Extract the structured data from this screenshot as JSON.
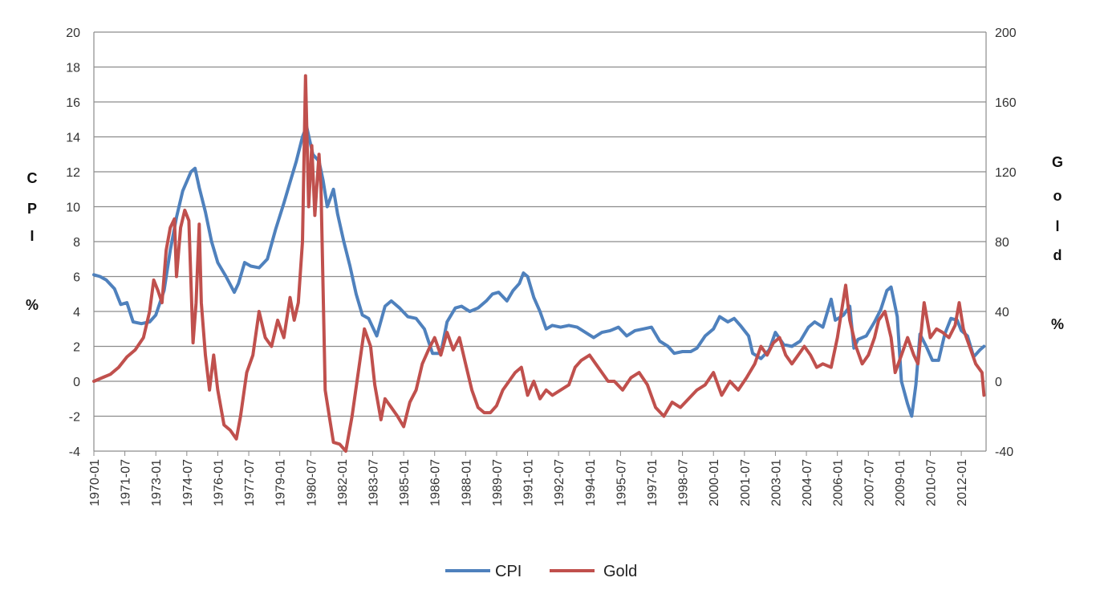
{
  "chart_data": {
    "type": "line",
    "title": "",
    "y_left": {
      "label": "CPI %",
      "label_chars": [
        "C",
        "P",
        "I",
        "",
        "%"
      ],
      "range": [
        -4,
        20
      ],
      "ticks": [
        -4,
        -2,
        0,
        2,
        4,
        6,
        8,
        10,
        12,
        14,
        16,
        18,
        20
      ]
    },
    "y_right": {
      "label": "Gold %",
      "label_chars": [
        "G",
        "o",
        "l",
        "d",
        "",
        "%"
      ],
      "range": [
        -40,
        200
      ],
      "ticks": [
        -40,
        0,
        40,
        80,
        120,
        160,
        200
      ]
    },
    "x_range": [
      1970.0,
      2013.2
    ],
    "x_ticks": [
      "1970-01",
      "1971-07",
      "1973-01",
      "1974-07",
      "1976-01",
      "1977-07",
      "1979-01",
      "1980-07",
      "1982-01",
      "1983-07",
      "1985-01",
      "1986-07",
      "1988-01",
      "1989-07",
      "1991-01",
      "1992-07",
      "1994-01",
      "1995-07",
      "1997-01",
      "1998-07",
      "2000-01",
      "2001-07",
      "2003-01",
      "2004-07",
      "2006-01",
      "2007-07",
      "2009-01",
      "2010-07",
      "2012-01"
    ],
    "grid": true,
    "legend_position": "bottom",
    "series": [
      {
        "name": "CPI",
        "color": "#4f81bd",
        "axis": "left",
        "points": [
          [
            1970.0,
            6.1
          ],
          [
            1970.3,
            6.0
          ],
          [
            1970.6,
            5.8
          ],
          [
            1971.0,
            5.3
          ],
          [
            1971.3,
            4.4
          ],
          [
            1971.6,
            4.5
          ],
          [
            1971.9,
            3.4
          ],
          [
            1972.3,
            3.3
          ],
          [
            1972.7,
            3.4
          ],
          [
            1973.0,
            3.8
          ],
          [
            1973.4,
            5.2
          ],
          [
            1973.7,
            7.5
          ],
          [
            1974.0,
            9.4
          ],
          [
            1974.3,
            10.9
          ],
          [
            1974.7,
            12.0
          ],
          [
            1974.9,
            12.2
          ],
          [
            1975.1,
            11.1
          ],
          [
            1975.4,
            9.7
          ],
          [
            1975.7,
            8.0
          ],
          [
            1976.0,
            6.8
          ],
          [
            1976.4,
            6.0
          ],
          [
            1976.8,
            5.1
          ],
          [
            1977.0,
            5.6
          ],
          [
            1977.3,
            6.8
          ],
          [
            1977.6,
            6.6
          ],
          [
            1978.0,
            6.5
          ],
          [
            1978.4,
            7.0
          ],
          [
            1978.8,
            8.7
          ],
          [
            1979.2,
            10.2
          ],
          [
            1979.5,
            11.4
          ],
          [
            1979.8,
            12.6
          ],
          [
            1980.1,
            14.0
          ],
          [
            1980.3,
            14.6
          ],
          [
            1980.6,
            13.0
          ],
          [
            1980.9,
            12.6
          ],
          [
            1981.1,
            11.5
          ],
          [
            1981.3,
            10.0
          ],
          [
            1981.6,
            11.0
          ],
          [
            1981.8,
            9.6
          ],
          [
            1982.1,
            8.0
          ],
          [
            1982.4,
            6.6
          ],
          [
            1982.7,
            5.0
          ],
          [
            1983.0,
            3.8
          ],
          [
            1983.3,
            3.6
          ],
          [
            1983.7,
            2.6
          ],
          [
            1984.1,
            4.3
          ],
          [
            1984.4,
            4.6
          ],
          [
            1984.8,
            4.2
          ],
          [
            1985.2,
            3.7
          ],
          [
            1985.6,
            3.6
          ],
          [
            1986.0,
            3.0
          ],
          [
            1986.4,
            1.6
          ],
          [
            1986.8,
            1.6
          ],
          [
            1987.1,
            3.4
          ],
          [
            1987.5,
            4.2
          ],
          [
            1987.8,
            4.3
          ],
          [
            1988.2,
            4.0
          ],
          [
            1988.6,
            4.2
          ],
          [
            1989.0,
            4.6
          ],
          [
            1989.3,
            5.0
          ],
          [
            1989.6,
            5.1
          ],
          [
            1990.0,
            4.6
          ],
          [
            1990.3,
            5.2
          ],
          [
            1990.6,
            5.6
          ],
          [
            1990.8,
            6.2
          ],
          [
            1991.0,
            6.0
          ],
          [
            1991.3,
            4.8
          ],
          [
            1991.6,
            4.0
          ],
          [
            1991.9,
            3.0
          ],
          [
            1992.2,
            3.2
          ],
          [
            1992.6,
            3.1
          ],
          [
            1993.0,
            3.2
          ],
          [
            1993.4,
            3.1
          ],
          [
            1993.8,
            2.8
          ],
          [
            1994.2,
            2.5
          ],
          [
            1994.6,
            2.8
          ],
          [
            1995.0,
            2.9
          ],
          [
            1995.4,
            3.1
          ],
          [
            1995.8,
            2.6
          ],
          [
            1996.2,
            2.9
          ],
          [
            1996.6,
            3.0
          ],
          [
            1997.0,
            3.1
          ],
          [
            1997.4,
            2.3
          ],
          [
            1997.8,
            2.0
          ],
          [
            1998.1,
            1.6
          ],
          [
            1998.5,
            1.7
          ],
          [
            1998.9,
            1.7
          ],
          [
            1999.2,
            1.9
          ],
          [
            1999.6,
            2.6
          ],
          [
            2000.0,
            3.0
          ],
          [
            2000.3,
            3.7
          ],
          [
            2000.7,
            3.4
          ],
          [
            2001.0,
            3.6
          ],
          [
            2001.3,
            3.2
          ],
          [
            2001.7,
            2.6
          ],
          [
            2001.9,
            1.6
          ],
          [
            2002.3,
            1.3
          ],
          [
            2002.7,
            1.8
          ],
          [
            2003.0,
            2.8
          ],
          [
            2003.4,
            2.1
          ],
          [
            2003.8,
            2.0
          ],
          [
            2004.2,
            2.3
          ],
          [
            2004.6,
            3.1
          ],
          [
            2004.9,
            3.4
          ],
          [
            2005.3,
            3.1
          ],
          [
            2005.7,
            4.7
          ],
          [
            2005.9,
            3.5
          ],
          [
            2006.3,
            3.8
          ],
          [
            2006.6,
            4.3
          ],
          [
            2006.8,
            1.9
          ],
          [
            2007.0,
            2.4
          ],
          [
            2007.4,
            2.6
          ],
          [
            2007.8,
            3.4
          ],
          [
            2008.1,
            4.1
          ],
          [
            2008.4,
            5.2
          ],
          [
            2008.6,
            5.4
          ],
          [
            2008.9,
            3.7
          ],
          [
            2009.1,
            0.0
          ],
          [
            2009.4,
            -1.3
          ],
          [
            2009.6,
            -2.0
          ],
          [
            2009.8,
            -0.2
          ],
          [
            2010.0,
            2.7
          ],
          [
            2010.3,
            2.0
          ],
          [
            2010.6,
            1.2
          ],
          [
            2010.9,
            1.2
          ],
          [
            2011.2,
            2.7
          ],
          [
            2011.5,
            3.6
          ],
          [
            2011.8,
            3.5
          ],
          [
            2012.0,
            2.9
          ],
          [
            2012.3,
            2.6
          ],
          [
            2012.6,
            1.4
          ],
          [
            2012.9,
            1.8
          ],
          [
            2013.1,
            2.0
          ]
        ]
      },
      {
        "name": "Gold",
        "color": "#c0504d",
        "axis": "right",
        "points": [
          [
            1970.0,
            0
          ],
          [
            1970.4,
            2
          ],
          [
            1970.8,
            4
          ],
          [
            1971.2,
            8
          ],
          [
            1971.6,
            14
          ],
          [
            1972.0,
            18
          ],
          [
            1972.4,
            25
          ],
          [
            1972.7,
            40
          ],
          [
            1972.9,
            58
          ],
          [
            1973.1,
            52
          ],
          [
            1973.3,
            45
          ],
          [
            1973.5,
            75
          ],
          [
            1973.7,
            88
          ],
          [
            1973.9,
            93
          ],
          [
            1974.0,
            60
          ],
          [
            1974.2,
            88
          ],
          [
            1974.4,
            98
          ],
          [
            1974.6,
            92
          ],
          [
            1974.8,
            22
          ],
          [
            1974.95,
            45
          ],
          [
            1975.1,
            90
          ],
          [
            1975.2,
            45
          ],
          [
            1975.4,
            15
          ],
          [
            1975.6,
            -5
          ],
          [
            1975.8,
            15
          ],
          [
            1976.0,
            -5
          ],
          [
            1976.3,
            -25
          ],
          [
            1976.6,
            -28
          ],
          [
            1976.9,
            -33
          ],
          [
            1977.1,
            -20
          ],
          [
            1977.4,
            5
          ],
          [
            1977.7,
            15
          ],
          [
            1978.0,
            40
          ],
          [
            1978.3,
            25
          ],
          [
            1978.6,
            20
          ],
          [
            1978.9,
            35
          ],
          [
            1979.2,
            25
          ],
          [
            1979.5,
            48
          ],
          [
            1979.7,
            35
          ],
          [
            1979.9,
            45
          ],
          [
            1980.1,
            80
          ],
          [
            1980.25,
            175
          ],
          [
            1980.4,
            100
          ],
          [
            1980.55,
            135
          ],
          [
            1980.7,
            95
          ],
          [
            1980.9,
            130
          ],
          [
            1981.0,
            110
          ],
          [
            1981.2,
            -5
          ],
          [
            1981.4,
            -20
          ],
          [
            1981.6,
            -35
          ],
          [
            1981.9,
            -36
          ],
          [
            1982.2,
            -40
          ],
          [
            1982.5,
            -20
          ],
          [
            1982.8,
            5
          ],
          [
            1983.1,
            30
          ],
          [
            1983.4,
            20
          ],
          [
            1983.6,
            -2
          ],
          [
            1983.9,
            -22
          ],
          [
            1984.1,
            -10
          ],
          [
            1984.4,
            -15
          ],
          [
            1984.7,
            -20
          ],
          [
            1985.0,
            -26
          ],
          [
            1985.3,
            -12
          ],
          [
            1985.6,
            -5
          ],
          [
            1985.9,
            10
          ],
          [
            1986.2,
            18
          ],
          [
            1986.5,
            25
          ],
          [
            1986.8,
            15
          ],
          [
            1987.1,
            28
          ],
          [
            1987.4,
            18
          ],
          [
            1987.7,
            25
          ],
          [
            1988.0,
            10
          ],
          [
            1988.3,
            -5
          ],
          [
            1988.6,
            -15
          ],
          [
            1988.9,
            -18
          ],
          [
            1989.2,
            -18
          ],
          [
            1989.5,
            -14
          ],
          [
            1989.8,
            -5
          ],
          [
            1990.1,
            0
          ],
          [
            1990.4,
            5
          ],
          [
            1990.7,
            8
          ],
          [
            1991.0,
            -8
          ],
          [
            1991.3,
            0
          ],
          [
            1991.6,
            -10
          ],
          [
            1991.9,
            -5
          ],
          [
            1992.2,
            -8
          ],
          [
            1992.6,
            -5
          ],
          [
            1993.0,
            -2
          ],
          [
            1993.3,
            8
          ],
          [
            1993.6,
            12
          ],
          [
            1994.0,
            15
          ],
          [
            1994.3,
            10
          ],
          [
            1994.6,
            5
          ],
          [
            1994.9,
            0
          ],
          [
            1995.2,
            0
          ],
          [
            1995.6,
            -5
          ],
          [
            1996.0,
            2
          ],
          [
            1996.4,
            5
          ],
          [
            1996.8,
            -2
          ],
          [
            1997.2,
            -15
          ],
          [
            1997.6,
            -20
          ],
          [
            1998.0,
            -12
          ],
          [
            1998.4,
            -15
          ],
          [
            1998.8,
            -10
          ],
          [
            1999.2,
            -5
          ],
          [
            1999.6,
            -2
          ],
          [
            2000.0,
            5
          ],
          [
            2000.4,
            -8
          ],
          [
            2000.8,
            0
          ],
          [
            2001.2,
            -5
          ],
          [
            2001.6,
            2
          ],
          [
            2002.0,
            10
          ],
          [
            2002.3,
            20
          ],
          [
            2002.6,
            15
          ],
          [
            2002.9,
            22
          ],
          [
            2003.2,
            25
          ],
          [
            2003.5,
            15
          ],
          [
            2003.8,
            10
          ],
          [
            2004.1,
            15
          ],
          [
            2004.4,
            20
          ],
          [
            2004.7,
            15
          ],
          [
            2005.0,
            8
          ],
          [
            2005.3,
            10
          ],
          [
            2005.7,
            8
          ],
          [
            2006.0,
            25
          ],
          [
            2006.2,
            40
          ],
          [
            2006.4,
            55
          ],
          [
            2006.6,
            35
          ],
          [
            2006.9,
            20
          ],
          [
            2007.2,
            10
          ],
          [
            2007.5,
            15
          ],
          [
            2007.8,
            25
          ],
          [
            2008.0,
            35
          ],
          [
            2008.3,
            40
          ],
          [
            2008.6,
            25
          ],
          [
            2008.8,
            5
          ],
          [
            2009.1,
            15
          ],
          [
            2009.4,
            25
          ],
          [
            2009.7,
            15
          ],
          [
            2009.9,
            10
          ],
          [
            2010.2,
            45
          ],
          [
            2010.5,
            25
          ],
          [
            2010.8,
            30
          ],
          [
            2011.1,
            28
          ],
          [
            2011.4,
            25
          ],
          [
            2011.7,
            32
          ],
          [
            2011.9,
            45
          ],
          [
            2012.1,
            30
          ],
          [
            2012.4,
            20
          ],
          [
            2012.7,
            10
          ],
          [
            2013.0,
            5
          ],
          [
            2013.1,
            -8
          ]
        ]
      }
    ]
  }
}
